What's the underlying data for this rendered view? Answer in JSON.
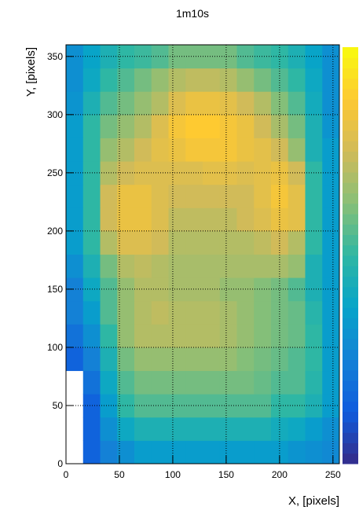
{
  "chart_data": {
    "type": "heatmap",
    "title": "1m10s",
    "x_label": "X, [pixels]",
    "y_label": "Y, [pixels]",
    "xbins": [
      0,
      16,
      32,
      48,
      64,
      80,
      96,
      112,
      128,
      144,
      160,
      176,
      192,
      208,
      224,
      240,
      256
    ],
    "ybins": [
      0,
      20,
      40,
      60,
      80,
      100,
      120,
      140,
      160,
      180,
      200,
      220,
      240,
      260,
      280,
      300,
      320,
      340,
      360
    ],
    "z": [
      [
        null,
        1.5,
        2.5,
        3,
        3.5,
        3.5,
        3.5,
        3.5,
        3.5,
        3.5,
        3.5,
        3.5,
        3.5,
        3.2,
        3,
        2.8
      ],
      [
        null,
        1.5,
        3,
        4,
        4.5,
        4.5,
        4.5,
        4.5,
        4.5,
        4.5,
        4.5,
        4.5,
        4.2,
        4,
        3.5,
        3
      ],
      [
        null,
        1.5,
        3.5,
        5,
        5.5,
        5.5,
        5.5,
        5.5,
        5.5,
        5.5,
        5.5,
        5.5,
        5,
        5,
        4.5,
        3.5
      ],
      [
        null,
        2,
        4,
        5.5,
        6,
        6,
        6,
        6,
        6,
        6,
        6,
        5.8,
        5.5,
        5.5,
        4.8,
        3.5
      ],
      [
        1.5,
        2.5,
        4.5,
        6,
        6.5,
        6.5,
        6.5,
        6.5,
        6.5,
        6.5,
        6.2,
        6,
        5.8,
        5.5,
        5,
        3.5
      ],
      [
        2,
        3,
        5,
        6.5,
        7,
        7,
        7,
        7,
        7,
        6.8,
        6.5,
        6.2,
        6,
        5.8,
        5,
        3.5
      ],
      [
        2.5,
        3.5,
        5.5,
        6.5,
        7,
        7.2,
        7,
        7,
        7,
        6.8,
        6.5,
        6.2,
        6,
        5.8,
        4.8,
        3.5
      ],
      [
        2.5,
        4,
        5.5,
        6.5,
        7,
        7,
        6.8,
        6.8,
        6.8,
        6.5,
        6.5,
        6.2,
        6,
        5.5,
        4.5,
        3.5
      ],
      [
        3,
        4.5,
        6,
        7,
        7.2,
        7,
        6.8,
        6.8,
        6.8,
        6.8,
        6.8,
        6.8,
        6.8,
        6.5,
        4.5,
        3.5
      ],
      [
        3.5,
        5,
        7,
        7.8,
        7.8,
        7.5,
        7,
        7,
        7,
        7,
        7,
        7.2,
        7.5,
        7,
        5,
        3.5
      ],
      [
        3.5,
        5,
        7.5,
        8.2,
        8.2,
        7.8,
        7.2,
        7.2,
        7.2,
        7.2,
        7.5,
        7.8,
        8.2,
        8,
        5,
        3.5
      ],
      [
        3.5,
        5,
        7.5,
        8.2,
        8.2,
        7.8,
        7.5,
        7.5,
        7.5,
        7.5,
        7.5,
        8,
        8.5,
        8,
        5,
        3.5
      ],
      [
        3.5,
        5,
        7,
        7.5,
        7.8,
        7.8,
        7.8,
        7.8,
        8,
        8,
        7.8,
        8,
        8.2,
        7.5,
        5,
        3.5
      ],
      [
        3.5,
        5,
        6.5,
        7,
        7.5,
        8,
        8.2,
        8.5,
        8.5,
        8.5,
        8.2,
        8,
        7.5,
        6.5,
        4.5,
        3.5
      ],
      [
        3.5,
        5,
        6,
        6.5,
        7,
        7.8,
        8.5,
        8.8,
        8.8,
        8.5,
        8.2,
        7.5,
        6.8,
        6,
        4.5,
        3.2
      ],
      [
        3.2,
        4.5,
        5.5,
        6,
        6.5,
        7,
        7.8,
        8.2,
        8.2,
        8,
        7.5,
        7,
        6.2,
        5.5,
        4.2,
        3
      ],
      [
        3,
        4,
        5,
        5.5,
        6,
        6.5,
        7,
        7.2,
        7.2,
        7,
        6.5,
        6,
        5.5,
        5,
        4,
        3
      ],
      [
        3,
        3.8,
        4.5,
        5,
        5.2,
        5.5,
        6,
        6,
        6,
        6,
        5.5,
        5.2,
        5,
        4.5,
        3.8,
        3
      ]
    ],
    "zlim": [
      0,
      10
    ],
    "xlim": [
      0,
      256
    ],
    "ylim": [
      0,
      360
    ],
    "xticks": [
      0,
      50,
      100,
      150,
      200,
      250
    ],
    "yticks": [
      0,
      50,
      100,
      150,
      200,
      250,
      300,
      350
    ],
    "grid": true
  }
}
